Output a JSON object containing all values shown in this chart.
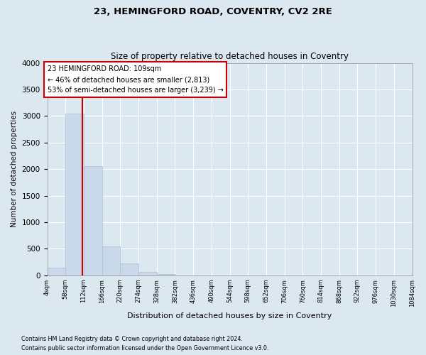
{
  "title": "23, HEMINGFORD ROAD, COVENTRY, CV2 2RE",
  "subtitle": "Size of property relative to detached houses in Coventry",
  "xlabel": "Distribution of detached houses by size in Coventry",
  "ylabel": "Number of detached properties",
  "bar_color": "#c9d9e9",
  "bar_edge_color": "#a8c0d4",
  "bins": [
    4,
    58,
    112,
    166,
    220,
    274,
    328,
    382,
    436,
    490,
    544,
    598,
    652,
    706,
    760,
    814,
    868,
    922,
    976,
    1030,
    1084
  ],
  "bar_heights": [
    150,
    3050,
    2050,
    550,
    220,
    60,
    25,
    0,
    0,
    0,
    0,
    0,
    0,
    0,
    0,
    0,
    0,
    0,
    0,
    0
  ],
  "property_size": 109,
  "vline_color": "#cc0000",
  "annotation_text": "23 HEMINGFORD ROAD: 109sqm\n← 46% of detached houses are smaller (2,813)\n53% of semi-detached houses are larger (3,239) →",
  "annotation_box_color": "#ffffff",
  "annotation_box_edge_color": "#cc0000",
  "ylim": [
    0,
    4000
  ],
  "yticks": [
    0,
    500,
    1000,
    1500,
    2000,
    2500,
    3000,
    3500,
    4000
  ],
  "footer_line1": "Contains HM Land Registry data © Crown copyright and database right 2024.",
  "footer_line2": "Contains public sector information licensed under the Open Government Licence v3.0.",
  "background_color": "#dce8f0",
  "plot_background_color": "#dce8f0",
  "tick_labels": [
    "4sqm",
    "58sqm",
    "112sqm",
    "166sqm",
    "220sqm",
    "274sqm",
    "328sqm",
    "382sqm",
    "436sqm",
    "490sqm",
    "544sqm",
    "598sqm",
    "652sqm",
    "706sqm",
    "760sqm",
    "814sqm",
    "868sqm",
    "922sqm",
    "976sqm",
    "1030sqm",
    "1084sqm"
  ],
  "figsize": [
    6.0,
    5.0
  ],
  "dpi": 100
}
